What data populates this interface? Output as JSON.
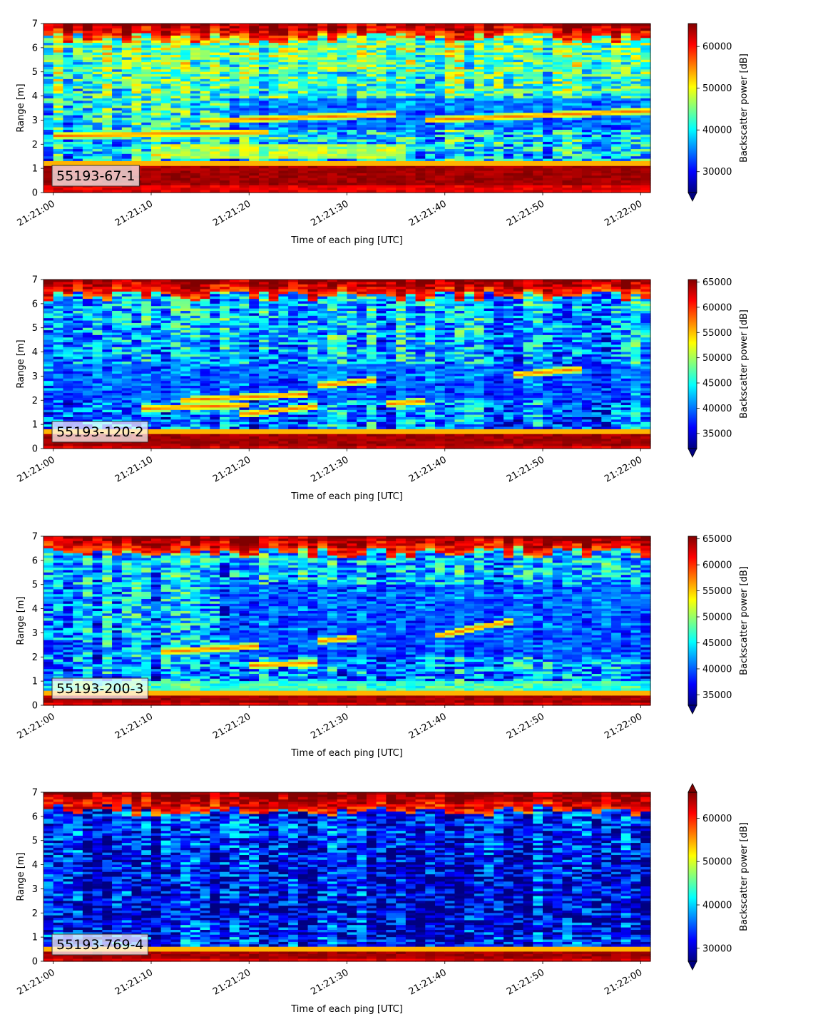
{
  "chart_data": [
    {
      "type": "heatmap",
      "tag": "55193-67-1",
      "xlabel": "Time of each ping [UTC]",
      "ylabel": "Range [m]",
      "x_range": [
        "21:21:00",
        "21:22:00"
      ],
      "x_ticks": [
        "21:21:00",
        "21:21:10",
        "21:21:20",
        "21:21:30",
        "21:21:40",
        "21:21:50",
        "21:22:00"
      ],
      "ylim": [
        0,
        7
      ],
      "y_ticks": [
        0,
        1,
        2,
        3,
        4,
        5,
        6,
        7
      ],
      "colorbar": {
        "label": "Backscatter power [dB]",
        "range": [
          25000,
          65500
        ],
        "ticks": [
          30000,
          40000,
          50000,
          60000
        ],
        "extend": "min",
        "colormap": "jet"
      },
      "features": {
        "bottom_echo_m": [
          0.3,
          1.15
        ],
        "surface_echo_from_m": 6.4,
        "background_mean": 0.52,
        "background_decay": 0.25,
        "trace_line": [
          {
            "t0": 0,
            "t1": 22,
            "y0": 2.35,
            "y1": 2.5
          },
          {
            "t0": 15,
            "t1": 35,
            "y0": 2.95,
            "y1": 3.25
          },
          {
            "t0": 38,
            "t1": 62,
            "y0": 3.0,
            "y1": 3.4
          }
        ],
        "blue_band": [
          {
            "y0": 2.6,
            "y1": 3.9,
            "t0": 18,
            "t1": 62,
            "level": 0.12
          }
        ],
        "warm_band": [
          {
            "y0": 1.4,
            "y1": 2.0,
            "t0": 10,
            "t1": 36,
            "level": 0.68
          }
        ]
      }
    },
    {
      "type": "heatmap",
      "tag": "55193-120-2",
      "xlabel": "Time of each ping [UTC]",
      "ylabel": "Range [m]",
      "x_range": [
        "21:21:00",
        "21:22:00"
      ],
      "x_ticks": [
        "21:21:00",
        "21:21:10",
        "21:21:20",
        "21:21:30",
        "21:21:40",
        "21:21:50",
        "21:22:00"
      ],
      "ylim": [
        0,
        7
      ],
      "y_ticks": [
        0,
        1,
        2,
        3,
        4,
        5,
        6,
        7
      ],
      "colorbar": {
        "label": "Backscatter power [dB]",
        "range": [
          32000,
          65500
        ],
        "ticks": [
          35000,
          40000,
          45000,
          50000,
          55000,
          60000,
          65000
        ],
        "extend": "min",
        "colormap": "jet"
      },
      "features": {
        "bottom_echo_m": [
          0.15,
          0.65
        ],
        "surface_echo_from_m": 6.3,
        "background_mean": 0.34,
        "background_decay": 0.1,
        "trace_line": [
          {
            "t0": 9,
            "t1": 20,
            "y0": 1.65,
            "y1": 1.8
          },
          {
            "t0": 13,
            "t1": 26,
            "y0": 2.0,
            "y1": 2.25
          },
          {
            "t0": 19,
            "t1": 27,
            "y0": 1.4,
            "y1": 1.75
          },
          {
            "t0": 27,
            "t1": 33,
            "y0": 2.6,
            "y1": 2.85
          },
          {
            "t0": 34,
            "t1": 38,
            "y0": 1.85,
            "y1": 1.95
          },
          {
            "t0": 47,
            "t1": 54,
            "y0": 3.05,
            "y1": 3.3
          }
        ],
        "blue_band": [
          {
            "y0": 2.0,
            "y1": 3.5,
            "t0": 0,
            "t1": 62,
            "level": 0.18
          }
        ],
        "warm_band": []
      }
    },
    {
      "type": "heatmap",
      "tag": "55193-200-3",
      "xlabel": "Time of each ping [UTC]",
      "ylabel": "Range [m]",
      "x_range": [
        "21:21:00",
        "21:22:00"
      ],
      "x_ticks": [
        "21:21:00",
        "21:21:10",
        "21:21:20",
        "21:21:30",
        "21:21:40",
        "21:21:50",
        "21:22:00"
      ],
      "ylim": [
        0,
        7
      ],
      "y_ticks": [
        0,
        1,
        2,
        3,
        4,
        5,
        6,
        7
      ],
      "colorbar": {
        "label": "Backscatter power [dB]",
        "range": [
          33000,
          65500
        ],
        "ticks": [
          35000,
          40000,
          45000,
          50000,
          55000,
          60000,
          65000
        ],
        "extend": "min",
        "colormap": "jet"
      },
      "features": {
        "bottom_echo_m": [
          0.1,
          0.45
        ],
        "surface_echo_from_m": 6.35,
        "background_mean": 0.32,
        "background_decay": 0.08,
        "trace_line": [
          {
            "t0": 11,
            "t1": 21,
            "y0": 2.2,
            "y1": 2.45
          },
          {
            "t0": 20,
            "t1": 27,
            "y0": 1.65,
            "y1": 1.75
          },
          {
            "t0": 27,
            "t1": 31,
            "y0": 2.65,
            "y1": 2.8
          },
          {
            "t0": 39,
            "t1": 47,
            "y0": 2.85,
            "y1": 3.5
          }
        ],
        "blue_band": [
          {
            "y0": 2.0,
            "y1": 5.0,
            "t0": 18,
            "t1": 62,
            "level": 0.15
          }
        ],
        "warm_band": [
          {
            "y0": 0.5,
            "y1": 1.0,
            "t0": 0,
            "t1": 62,
            "level": 0.55
          }
        ]
      }
    },
    {
      "type": "heatmap",
      "tag": "55193-769-4",
      "xlabel": "Time of each ping [UTC]",
      "ylabel": "Range [m]",
      "x_range": [
        "21:21:00",
        "21:22:00"
      ],
      "x_ticks": [
        "21:21:00",
        "21:21:10",
        "21:21:20",
        "21:21:30",
        "21:21:40",
        "21:21:50",
        "21:22:00"
      ],
      "ylim": [
        0,
        7
      ],
      "y_ticks": [
        0,
        1,
        2,
        3,
        4,
        5,
        6,
        7
      ],
      "colorbar": {
        "label": "Backscatter power [dB]",
        "range": [
          27000,
          66000
        ],
        "ticks": [
          30000,
          40000,
          50000,
          60000
        ],
        "extend": "both",
        "colormap": "jet"
      },
      "features": {
        "bottom_echo_m": [
          0.1,
          0.4
        ],
        "surface_echo_from_m": 6.25,
        "surface_band_m": [
          6.3,
          6.75
        ],
        "background_mean": 0.18,
        "background_decay": 0.12,
        "low_warm_boost": 0.25,
        "trace_line": [],
        "blue_band": [],
        "warm_band": []
      }
    }
  ]
}
